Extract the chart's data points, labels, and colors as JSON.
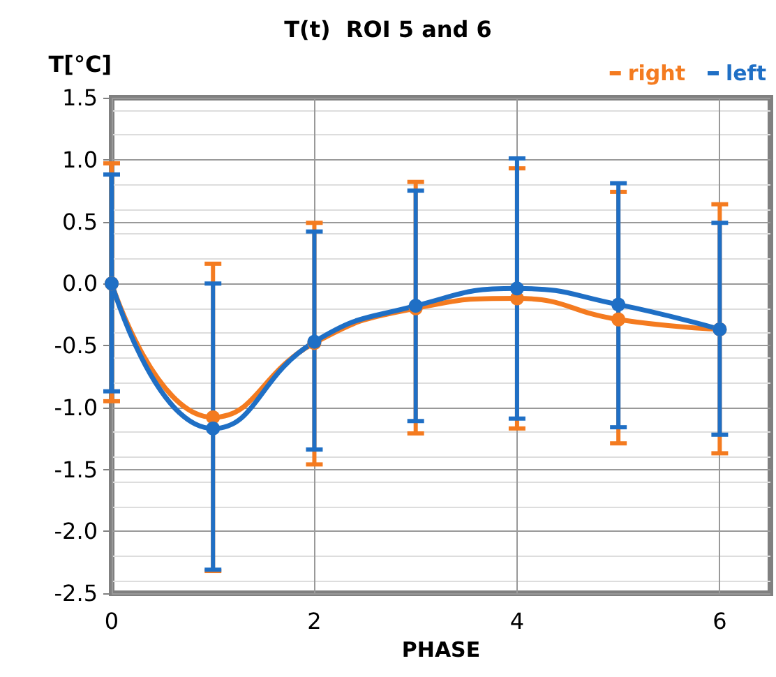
{
  "chart_data": {
    "type": "line",
    "title": "T(t)  ROI 5 and 6",
    "xlabel": "PHASE",
    "ylabel": "T[°C]",
    "x": [
      0,
      1,
      2,
      3,
      4,
      5,
      6
    ],
    "series": [
      {
        "name": "right",
        "color": "#f47b20",
        "values": [
          0,
          -1.08,
          -0.48,
          -0.2,
          -0.12,
          -0.29,
          -0.37
        ],
        "errors": [
          [
            -0.95,
            0.97
          ],
          [
            -2.32,
            0.16
          ],
          [
            -1.46,
            0.49
          ],
          [
            -1.21,
            0.82
          ],
          [
            -1.17,
            0.93
          ],
          [
            -1.29,
            0.74
          ],
          [
            -1.37,
            0.64
          ]
        ]
      },
      {
        "name": "left",
        "color": "#1f6fc5",
        "values": [
          0,
          -1.17,
          -0.47,
          -0.18,
          -0.04,
          -0.17,
          -0.37
        ],
        "errors": [
          [
            -0.87,
            0.88
          ],
          [
            -2.31,
            0
          ],
          [
            -1.34,
            0.42
          ],
          [
            -1.11,
            0.75
          ],
          [
            -1.09,
            1.01
          ],
          [
            -1.16,
            0.81
          ],
          [
            -1.22,
            0.49
          ]
        ]
      }
    ],
    "xlim": [
      0,
      6.5
    ],
    "xticks": [
      0,
      2,
      4,
      6
    ],
    "ylim": [
      -2.5,
      1.5
    ],
    "yticks": [
      -2.5,
      {
        "value": -2,
        "label": "-2.0"
      },
      -1.5,
      {
        "value": -1,
        "label": "-1.0"
      },
      -0.5,
      {
        "value": 0,
        "label": "0.0"
      },
      0.5,
      {
        "value": 1,
        "label": "1.0"
      },
      1.5
    ],
    "grid": true,
    "legend": "top right",
    "marker": "circle",
    "line_style": "solid"
  }
}
